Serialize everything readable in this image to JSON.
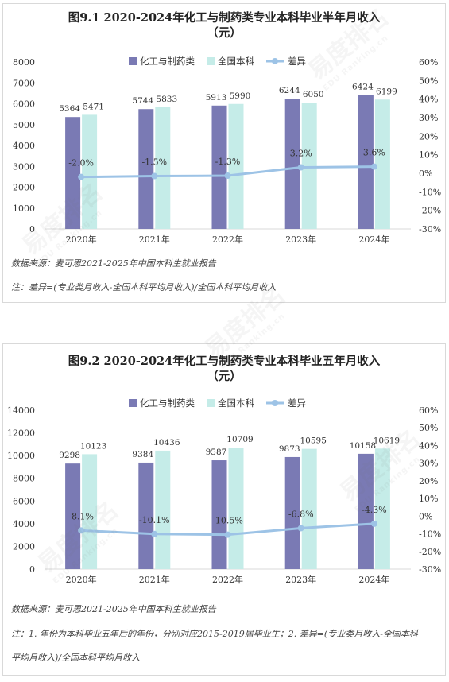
{
  "watermark": {
    "text": "易度排名",
    "sub": "EDU Ranking.cn"
  },
  "panels": [
    {
      "title_line1": "图9.1  2020-2024年化工与制药类专业本科毕业半年月收入",
      "title_line2": "（元）",
      "note_source": "数据来源：麦可思2021-2025年中国本科生就业报告",
      "note_lines": [
        "注：差异=(专业类月收入-全国本科平均月收入)/全国本科平均月收入"
      ]
    },
    {
      "title_line1": "图9.2  2020-2024年化工与制药类专业本科毕业五年月收入",
      "title_line2": "（元）",
      "note_source": "数据来源：麦可思2021-2025年中国本科生就业报告",
      "note_lines": [
        "注：1. 年份为本科毕业五年后的年份，分别对应2015-2019届毕业生；2. 差异=(专业类月收入-全国本科",
        "平均月收入)/全国本科平均月收入"
      ]
    }
  ],
  "chart_data": [
    {
      "type": "bar",
      "categories": [
        "2020年",
        "2021年",
        "2022年",
        "2023年",
        "2024年"
      ],
      "series": [
        {
          "name": "化工与制药类",
          "values": [
            5364,
            5744,
            5913,
            6244,
            6424
          ],
          "color": "#7a7ab4"
        },
        {
          "name": "全国本科",
          "values": [
            5471,
            5833,
            5990,
            6050,
            6199
          ],
          "color": "#c5ece8"
        },
        {
          "name": "差异",
          "type": "line",
          "axis": "right",
          "values": [
            -2.0,
            -1.5,
            -1.3,
            3.2,
            3.6
          ],
          "labels": [
            "-2.0%",
            "-1.5%",
            "-1.3%",
            "3.2%",
            "3.6%"
          ],
          "color": "#9dc3e6"
        }
      ],
      "ylim": [
        0,
        8000
      ],
      "yticks": [
        0,
        1000,
        2000,
        3000,
        4000,
        5000,
        6000,
        7000,
        8000
      ],
      "y2lim": [
        -30,
        60
      ],
      "y2ticks": [
        -30,
        -20,
        -10,
        0,
        10,
        20,
        30,
        40,
        50,
        60
      ],
      "y2tick_labels": [
        "-30%",
        "-20%",
        "-10%",
        "0%",
        "10%",
        "20%",
        "30%",
        "40%",
        "50%",
        "60%"
      ],
      "legend_position": "top"
    },
    {
      "type": "bar",
      "categories": [
        "2020年",
        "2021年",
        "2022年",
        "2023年",
        "2024年"
      ],
      "series": [
        {
          "name": "化工与制药类",
          "values": [
            9298,
            9384,
            9587,
            9873,
            10158
          ],
          "color": "#7a7ab4"
        },
        {
          "name": "全国本科",
          "values": [
            10123,
            10436,
            10709,
            10595,
            10619
          ],
          "color": "#c5ece8"
        },
        {
          "name": "差异",
          "type": "line",
          "axis": "right",
          "values": [
            -8.1,
            -10.1,
            -10.5,
            -6.8,
            -4.3
          ],
          "labels": [
            "-8.1%",
            "-10.1%",
            "-10.5%",
            "-6.8%",
            "-4.3%"
          ],
          "color": "#9dc3e6"
        }
      ],
      "ylim": [
        0,
        14000
      ],
      "yticks": [
        0,
        2000,
        4000,
        6000,
        8000,
        10000,
        12000,
        14000
      ],
      "y2lim": [
        -30,
        60
      ],
      "y2ticks": [
        -30,
        -20,
        -10,
        0,
        10,
        20,
        30,
        40,
        50,
        60
      ],
      "y2tick_labels": [
        "-30%",
        "-20%",
        "-10%",
        "0%",
        "10%",
        "20%",
        "30%",
        "40%",
        "50%",
        "60%"
      ],
      "legend_position": "top"
    }
  ]
}
